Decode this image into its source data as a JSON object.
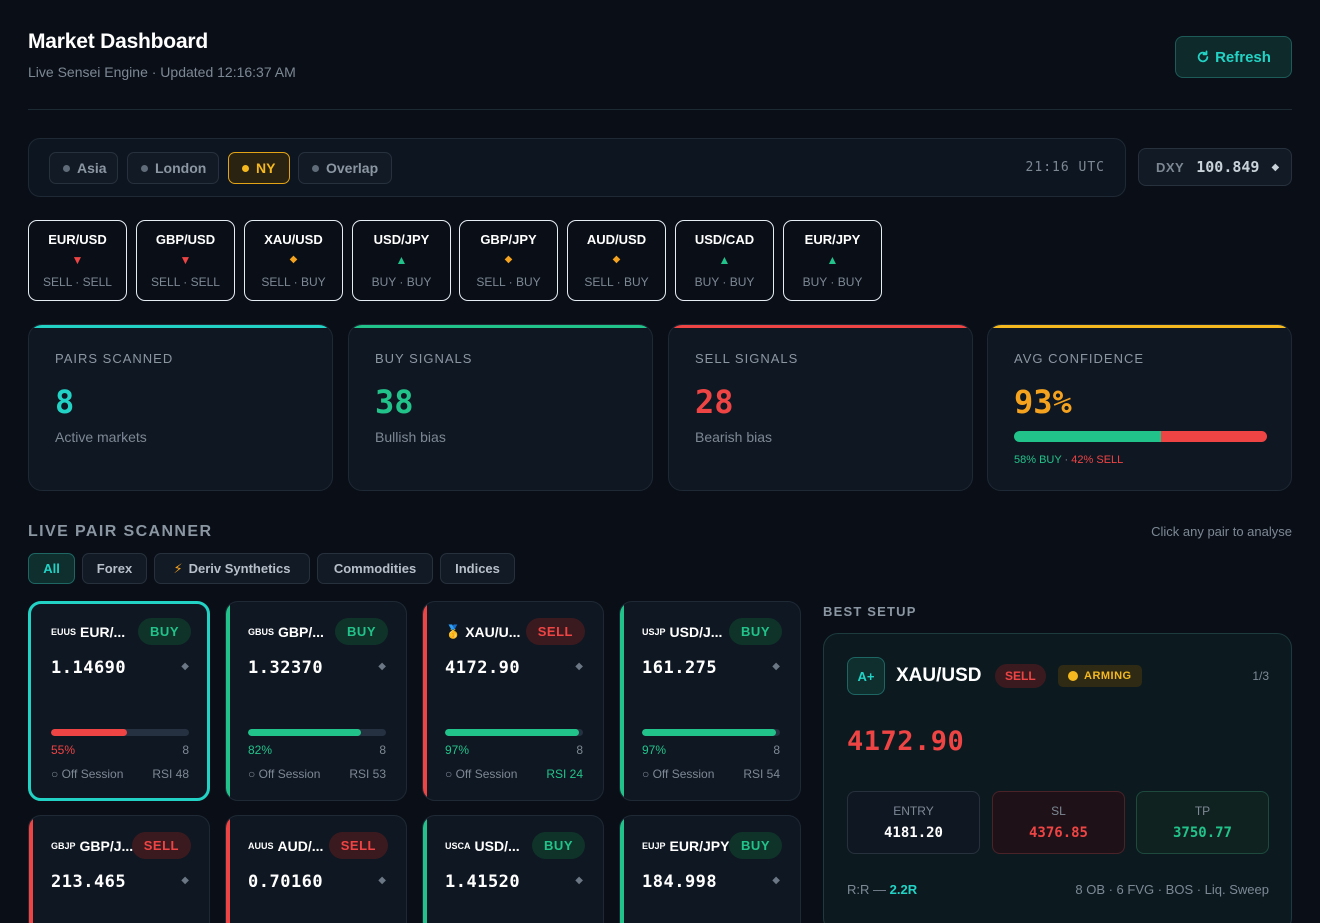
{
  "header": {
    "title": "Market Dashboard",
    "subtitle": "Live Sensei Engine · Updated 12:16:37 AM",
    "refresh_label": "Refresh"
  },
  "sessions": {
    "tabs": [
      "Asia",
      "London",
      "NY",
      "Overlap"
    ],
    "active": "NY",
    "utc_time": "21:16 UTC"
  },
  "dxy": {
    "label": "DXY",
    "value": "100.849"
  },
  "mini_pairs": [
    {
      "pair": "EUR/USD",
      "direction": "down",
      "signal": "SELL · SELL"
    },
    {
      "pair": "GBP/USD",
      "direction": "down",
      "signal": "SELL · SELL"
    },
    {
      "pair": "XAU/USD",
      "direction": "neutral",
      "signal": "SELL · BUY"
    },
    {
      "pair": "USD/JPY",
      "direction": "up",
      "signal": "BUY · BUY"
    },
    {
      "pair": "GBP/JPY",
      "direction": "neutral",
      "signal": "SELL · BUY"
    },
    {
      "pair": "AUD/USD",
      "direction": "neutral",
      "signal": "SELL · BUY"
    },
    {
      "pair": "USD/CAD",
      "direction": "up",
      "signal": "BUY · BUY"
    },
    {
      "pair": "EUR/JPY",
      "direction": "up",
      "signal": "BUY · BUY"
    }
  ],
  "stats": {
    "pairs_scanned": {
      "label": "PAIRS SCANNED",
      "value": "8",
      "sub": "Active markets"
    },
    "buy_signals": {
      "label": "BUY SIGNALS",
      "value": "38",
      "sub": "Bullish bias"
    },
    "sell_signals": {
      "label": "SELL SIGNALS",
      "value": "28",
      "sub": "Bearish bias"
    },
    "avg_confidence": {
      "label": "AVG CONFIDENCE",
      "value": "93%",
      "buy_pct": 58,
      "sell_pct": 42,
      "buy_text": "58% BUY",
      "sep": " · ",
      "sell_text": "42% SELL"
    }
  },
  "scanner": {
    "title": "LIVE PAIR SCANNER",
    "hint": "Click any pair to analyse",
    "filters": [
      "All",
      "Forex",
      "Deriv Synthetics",
      "Commodities",
      "Indices"
    ],
    "active_filter": "All",
    "cards": [
      {
        "flag": "EUUS",
        "name": "EUR/...",
        "signal": "BUY",
        "price": "1.14690",
        "confidence": 55,
        "conf_text": "55%",
        "count": "8",
        "session": "○ Off Session",
        "rsi": "RSI 48",
        "bar_color": "#ef4444",
        "pct_color": "#ef4444",
        "rsi_color": "#7d8895",
        "accent": "#22d3c5",
        "selected": true
      },
      {
        "flag": "GBUS",
        "name": "GBP/...",
        "signal": "BUY",
        "price": "1.32370",
        "confidence": 82,
        "conf_text": "82%",
        "count": "8",
        "session": "○ Off Session",
        "rsi": "RSI 53",
        "bar_color": "#22c38a",
        "pct_color": "#22c38a",
        "rsi_color": "#7d8895",
        "accent": "#22c38a",
        "selected": false
      },
      {
        "flag": "🥇",
        "name": "XAU/U...",
        "signal": "SELL",
        "price": "4172.90",
        "confidence": 97,
        "conf_text": "97%",
        "count": "8",
        "session": "○ Off Session",
        "rsi": "RSI 24",
        "bar_color": "#22c38a",
        "pct_color": "#22c38a",
        "rsi_color": "#22c38a",
        "accent": "#ef4444",
        "selected": false
      },
      {
        "flag": "USJP",
        "name": "USD/J...",
        "signal": "BUY",
        "price": "161.275",
        "confidence": 97,
        "conf_text": "97%",
        "count": "8",
        "session": "○ Off Session",
        "rsi": "RSI 54",
        "bar_color": "#22c38a",
        "pct_color": "#22c38a",
        "rsi_color": "#7d8895",
        "accent": "#22c38a",
        "selected": false
      },
      {
        "flag": "GBJP",
        "name": "GBP/J...",
        "signal": "SELL",
        "price": "213.465",
        "accent": "#ef4444"
      },
      {
        "flag": "AUUS",
        "name": "AUD/...",
        "signal": "SELL",
        "price": "0.70160",
        "accent": "#ef4444"
      },
      {
        "flag": "USCA",
        "name": "USD/...",
        "signal": "BUY",
        "price": "1.41520",
        "accent": "#22c38a"
      },
      {
        "flag": "EUJP",
        "name": "EUR/JPY",
        "signal": "BUY",
        "price": "184.998",
        "accent": "#22c38a"
      }
    ]
  },
  "best_setup": {
    "title": "BEST SETUP",
    "grade": "A+",
    "pair": "XAU/USD",
    "signal": "SELL",
    "status": "ARMING",
    "index": "1/3",
    "price": "4172.90",
    "entry": {
      "label": "ENTRY",
      "value": "4181.20"
    },
    "sl": {
      "label": "SL",
      "value": "4376.85"
    },
    "tp": {
      "label": "TP",
      "value": "3750.77"
    },
    "rr_label": "R:R —",
    "rr_value": "2.2R",
    "tags": "8 OB · 6 FVG · BOS · Liq. Sweep"
  },
  "colors": {
    "accent": "#22d3c5",
    "buy": "#22c38a",
    "sell": "#ef4444",
    "warn": "#f5b91f"
  }
}
